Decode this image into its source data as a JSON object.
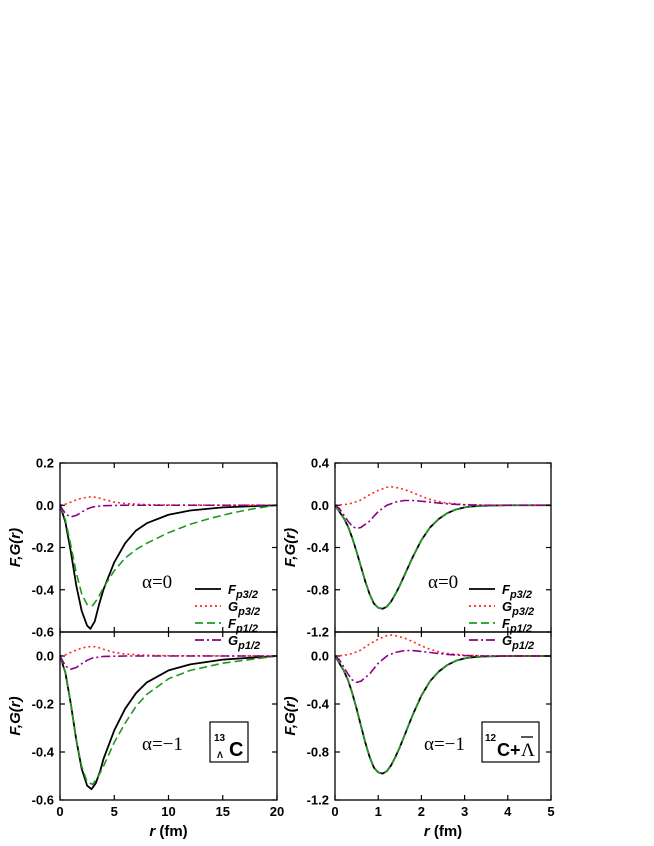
{
  "chart_data": [
    {
      "type": "line",
      "panel": "top-left",
      "ylabel": "F,G(r)",
      "xlim": [
        0,
        20
      ],
      "ylim": [
        -0.6,
        0.2
      ],
      "xticks": [
        0,
        5,
        10,
        15,
        20
      ],
      "yticks": [
        "-0.6",
        "-0.4",
        "-0.2",
        "0.0",
        "0.2"
      ],
      "annotation": "α=0",
      "legend_position": "bottom-right",
      "series": [
        {
          "name": "F_{p3/2}",
          "color": "#000000",
          "dash": "solid",
          "x": [
            0,
            0.5,
            1,
            1.5,
            2,
            2.5,
            2.8,
            3.2,
            3.6,
            4,
            5,
            6,
            7,
            8,
            10,
            12,
            15,
            20
          ],
          "y": [
            0,
            -0.08,
            -0.22,
            -0.38,
            -0.5,
            -0.57,
            -0.585,
            -0.55,
            -0.47,
            -0.4,
            -0.27,
            -0.18,
            -0.12,
            -0.085,
            -0.045,
            -0.025,
            -0.01,
            0
          ]
        },
        {
          "name": "G_{p3/2}",
          "color": "#ff2a1a",
          "dash": "dot",
          "x": [
            0,
            0.5,
            1,
            1.5,
            2,
            2.5,
            3,
            3.5,
            4,
            5,
            6,
            8,
            10,
            20
          ],
          "y": [
            0,
            0.005,
            0.015,
            0.025,
            0.033,
            0.038,
            0.04,
            0.036,
            0.028,
            0.015,
            0.008,
            0.003,
            0.001,
            0
          ]
        },
        {
          "name": "F_{p1/2}",
          "color": "#1f9a1f",
          "dash": "dash",
          "x": [
            0,
            0.5,
            1,
            1.5,
            2,
            2.5,
            3,
            3.5,
            4,
            5,
            6,
            7,
            8,
            10,
            12,
            14,
            16,
            18,
            20
          ],
          "y": [
            0,
            -0.07,
            -0.19,
            -0.32,
            -0.42,
            -0.47,
            -0.475,
            -0.44,
            -0.39,
            -0.31,
            -0.25,
            -0.21,
            -0.18,
            -0.13,
            -0.09,
            -0.06,
            -0.035,
            -0.015,
            0
          ]
        },
        {
          "name": "G_{p1/2}",
          "color": "#8b008b",
          "dash": "dashdot",
          "x": [
            0,
            0.3,
            0.6,
            1,
            1.5,
            2,
            2.5,
            3,
            4,
            6,
            10,
            20
          ],
          "y": [
            0,
            -0.025,
            -0.045,
            -0.055,
            -0.048,
            -0.032,
            -0.018,
            -0.008,
            -0.002,
            0,
            0,
            0
          ]
        }
      ]
    },
    {
      "type": "line",
      "panel": "bottom-left",
      "ylabel": "F,G(r)",
      "xlabel": "r (fm)",
      "xlim": [
        0,
        20
      ],
      "ylim": [
        -0.6,
        0.1
      ],
      "xticks": [
        0,
        5,
        10,
        15,
        20
      ],
      "yticks": [
        "-0.6",
        "-0.4",
        "-0.2",
        "0.0"
      ],
      "annotation": "α=−1",
      "series": [
        {
          "name": "F_{p3/2}",
          "color": "#000000",
          "dash": "solid",
          "x": [
            0,
            0.5,
            1,
            1.5,
            2,
            2.5,
            2.9,
            3.3,
            3.7,
            4,
            5,
            6,
            7,
            8,
            10,
            12,
            15,
            20
          ],
          "y": [
            0,
            -0.07,
            -0.2,
            -0.35,
            -0.47,
            -0.54,
            -0.555,
            -0.53,
            -0.48,
            -0.43,
            -0.31,
            -0.22,
            -0.155,
            -0.11,
            -0.06,
            -0.035,
            -0.015,
            0
          ]
        },
        {
          "name": "G_{p3/2}",
          "color": "#ff2a1a",
          "dash": "dot",
          "x": [
            0,
            0.5,
            1,
            1.5,
            2,
            2.5,
            3,
            3.5,
            4,
            5,
            6,
            8,
            10,
            20
          ],
          "y": [
            0,
            0.005,
            0.015,
            0.025,
            0.033,
            0.038,
            0.04,
            0.036,
            0.028,
            0.015,
            0.008,
            0.003,
            0.001,
            0
          ]
        },
        {
          "name": "F_{p1/2}",
          "color": "#1f9a1f",
          "dash": "dash",
          "x": [
            0,
            0.5,
            1,
            1.5,
            2,
            2.5,
            3,
            3.5,
            4,
            5,
            6,
            7,
            8,
            10,
            12,
            15,
            20
          ],
          "y": [
            0,
            -0.07,
            -0.2,
            -0.35,
            -0.46,
            -0.525,
            -0.535,
            -0.505,
            -0.46,
            -0.36,
            -0.28,
            -0.21,
            -0.16,
            -0.095,
            -0.06,
            -0.03,
            0
          ]
        },
        {
          "name": "G_{p1/2}",
          "color": "#8b008b",
          "dash": "dashdot",
          "x": [
            0,
            0.3,
            0.6,
            1,
            1.5,
            2,
            2.5,
            3,
            4,
            6,
            10,
            20
          ],
          "y": [
            0,
            -0.025,
            -0.045,
            -0.055,
            -0.048,
            -0.032,
            -0.018,
            -0.008,
            -0.002,
            0,
            0,
            0
          ]
        }
      ]
    },
    {
      "type": "line",
      "panel": "top-right",
      "ylabel": "F,G(r)",
      "xlim": [
        0,
        5
      ],
      "ylim": [
        -1.2,
        0.4
      ],
      "xticks": [
        0,
        1,
        2,
        3,
        4,
        5
      ],
      "yticks": [
        "-1.2",
        "-0.8",
        "-0.4",
        "0.0",
        "0.4"
      ],
      "annotation": "α=0",
      "legend_position": "bottom-right",
      "series": [
        {
          "name": "F_{p3/2}",
          "color": "#000000",
          "dash": "solid",
          "x": [
            0,
            0.1,
            0.2,
            0.3,
            0.4,
            0.5,
            0.6,
            0.7,
            0.8,
            0.9,
            1.0,
            1.1,
            1.2,
            1.3,
            1.4,
            1.5,
            1.6,
            1.7,
            1.8,
            1.9,
            2.0,
            2.2,
            2.4,
            2.6,
            2.8,
            3.0,
            3.2,
            3.5,
            4.0,
            5.0
          ],
          "y": [
            0,
            -0.06,
            -0.12,
            -0.2,
            -0.31,
            -0.44,
            -0.58,
            -0.72,
            -0.84,
            -0.93,
            -0.97,
            -0.98,
            -0.96,
            -0.91,
            -0.84,
            -0.76,
            -0.67,
            -0.58,
            -0.49,
            -0.41,
            -0.33,
            -0.21,
            -0.13,
            -0.075,
            -0.04,
            -0.02,
            -0.01,
            -0.003,
            0,
            0
          ]
        },
        {
          "name": "G_{p3/2}",
          "color": "#ff2a1a",
          "dash": "dot",
          "x": [
            0,
            0.2,
            0.4,
            0.6,
            0.8,
            1.0,
            1.2,
            1.3,
            1.4,
            1.6,
            1.8,
            2.0,
            2.2,
            2.5,
            3.0,
            3.5,
            4.0,
            5.0
          ],
          "y": [
            0,
            0.005,
            0.02,
            0.05,
            0.1,
            0.14,
            0.17,
            0.175,
            0.17,
            0.15,
            0.12,
            0.085,
            0.055,
            0.025,
            0.006,
            0.001,
            0,
            0
          ]
        },
        {
          "name": "F_{p1/2}",
          "color": "#1f9a1f",
          "dash": "dash",
          "x": [
            0,
            0.1,
            0.2,
            0.3,
            0.4,
            0.5,
            0.6,
            0.7,
            0.8,
            0.9,
            1.0,
            1.1,
            1.2,
            1.3,
            1.4,
            1.5,
            1.6,
            1.7,
            1.8,
            1.9,
            2.0,
            2.2,
            2.4,
            2.6,
            2.8,
            3.0,
            3.2,
            3.5,
            4.0,
            5.0
          ],
          "y": [
            0,
            -0.06,
            -0.12,
            -0.2,
            -0.31,
            -0.44,
            -0.58,
            -0.72,
            -0.84,
            -0.93,
            -0.97,
            -0.98,
            -0.96,
            -0.91,
            -0.84,
            -0.76,
            -0.67,
            -0.58,
            -0.49,
            -0.41,
            -0.33,
            -0.21,
            -0.13,
            -0.075,
            -0.04,
            -0.02,
            -0.01,
            -0.003,
            0,
            0
          ]
        },
        {
          "name": "G_{p1/2}",
          "color": "#8b008b",
          "dash": "dashdot",
          "x": [
            0,
            0.1,
            0.2,
            0.3,
            0.4,
            0.5,
            0.6,
            0.8,
            1.0,
            1.2,
            1.4,
            1.6,
            1.8,
            2.0,
            2.3,
            2.6,
            3.0,
            3.5,
            4.0,
            5.0
          ],
          "y": [
            0,
            -0.03,
            -0.09,
            -0.15,
            -0.2,
            -0.22,
            -0.21,
            -0.15,
            -0.06,
            0.0,
            0.03,
            0.045,
            0.045,
            0.038,
            0.025,
            0.013,
            0.004,
            0,
            0,
            0
          ]
        }
      ]
    },
    {
      "type": "line",
      "panel": "bottom-right",
      "ylabel": "F,G(r)",
      "xlabel": "r (fm)",
      "xlim": [
        0,
        5
      ],
      "ylim": [
        -1.2,
        0.2
      ],
      "xticks": [
        0,
        1,
        2,
        3,
        4,
        5
      ],
      "yticks": [
        "-1.2",
        "-0.8",
        "-0.4",
        "0.0"
      ],
      "annotation": "α=−1",
      "series": [
        {
          "name": "F_{p3/2}",
          "color": "#000000",
          "dash": "solid",
          "x": [
            0,
            0.1,
            0.2,
            0.3,
            0.4,
            0.5,
            0.6,
            0.7,
            0.8,
            0.9,
            1.0,
            1.1,
            1.2,
            1.3,
            1.4,
            1.5,
            1.6,
            1.7,
            1.8,
            1.9,
            2.0,
            2.2,
            2.4,
            2.6,
            2.8,
            3.0,
            3.2,
            3.5,
            4.0,
            5.0
          ],
          "y": [
            0,
            -0.06,
            -0.12,
            -0.2,
            -0.31,
            -0.44,
            -0.58,
            -0.72,
            -0.84,
            -0.93,
            -0.97,
            -0.98,
            -0.96,
            -0.91,
            -0.84,
            -0.76,
            -0.67,
            -0.58,
            -0.49,
            -0.41,
            -0.33,
            -0.21,
            -0.13,
            -0.075,
            -0.04,
            -0.02,
            -0.01,
            -0.003,
            0,
            0
          ]
        },
        {
          "name": "G_{p3/2}",
          "color": "#ff2a1a",
          "dash": "dot",
          "x": [
            0,
            0.2,
            0.4,
            0.6,
            0.8,
            1.0,
            1.2,
            1.3,
            1.4,
            1.6,
            1.8,
            2.0,
            2.2,
            2.5,
            3.0,
            3.5,
            4.0,
            5.0
          ],
          "y": [
            0,
            0.005,
            0.02,
            0.05,
            0.1,
            0.14,
            0.17,
            0.175,
            0.17,
            0.15,
            0.12,
            0.085,
            0.055,
            0.025,
            0.006,
            0.001,
            0,
            0
          ]
        },
        {
          "name": "F_{p1/2}",
          "color": "#1f9a1f",
          "dash": "dash",
          "x": [
            0,
            0.1,
            0.2,
            0.3,
            0.4,
            0.5,
            0.6,
            0.7,
            0.8,
            0.9,
            1.0,
            1.1,
            1.2,
            1.3,
            1.4,
            1.5,
            1.6,
            1.7,
            1.8,
            1.9,
            2.0,
            2.2,
            2.4,
            2.6,
            2.8,
            3.0,
            3.2,
            3.5,
            4.0,
            5.0
          ],
          "y": [
            0,
            -0.06,
            -0.12,
            -0.2,
            -0.31,
            -0.44,
            -0.58,
            -0.72,
            -0.84,
            -0.93,
            -0.97,
            -0.98,
            -0.96,
            -0.91,
            -0.84,
            -0.76,
            -0.67,
            -0.58,
            -0.49,
            -0.41,
            -0.33,
            -0.21,
            -0.13,
            -0.075,
            -0.04,
            -0.02,
            -0.01,
            -0.003,
            0,
            0
          ]
        },
        {
          "name": "G_{p1/2}",
          "color": "#8b008b",
          "dash": "dashdot",
          "x": [
            0,
            0.1,
            0.2,
            0.3,
            0.4,
            0.5,
            0.6,
            0.8,
            1.0,
            1.2,
            1.4,
            1.6,
            1.8,
            2.0,
            2.3,
            2.6,
            3.0,
            3.5,
            4.0,
            5.0
          ],
          "y": [
            0,
            -0.03,
            -0.09,
            -0.15,
            -0.2,
            -0.22,
            -0.21,
            -0.15,
            -0.06,
            0.0,
            0.03,
            0.045,
            0.045,
            0.038,
            0.025,
            0.013,
            0.004,
            0,
            0,
            0
          ]
        }
      ]
    }
  ],
  "labels": {
    "nucleus_left": {
      "mass": "13",
      "sub": "Λ",
      "elem": "C"
    },
    "nucleus_right": {
      "mass": "12",
      "elem": "C+",
      "bar": "Λ"
    },
    "xlabel_italic": "r",
    "xlabel_unit": " (fm)"
  }
}
